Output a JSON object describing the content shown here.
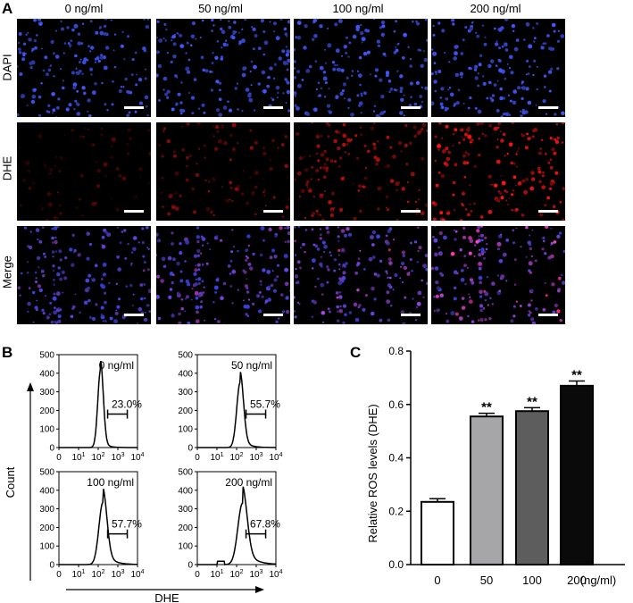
{
  "panel_a": {
    "letter": "A",
    "columns": [
      "0 ng/ml",
      "50 ng/ml",
      "100 ng/ml",
      "200 ng/ml"
    ],
    "rows": [
      "DAPI",
      "DHE",
      "Merge"
    ]
  },
  "panel_b": {
    "letter": "B",
    "y_axis_label": "Count",
    "x_axis_label": "DHE",
    "y_ticks": [
      "0",
      "100",
      "200",
      "300",
      "400",
      "500"
    ],
    "x_ticks": [
      "0",
      "10",
      "1",
      "10",
      "2",
      "10",
      "3",
      "10",
      "4"
    ],
    "x_tick_pairs": [
      {
        "base": "0",
        "exp": ""
      },
      {
        "base": "10",
        "exp": "1"
      },
      {
        "base": "10",
        "exp": "2"
      },
      {
        "base": "10",
        "exp": "3"
      },
      {
        "base": "10",
        "exp": "4"
      }
    ],
    "histograms": [
      {
        "label": "0 ng/ml",
        "percent": "23.0%",
        "peak": 420
      },
      {
        "label": "50 ng/ml",
        "percent": "55.7%",
        "peak": 350
      },
      {
        "label": "100 ng/ml",
        "percent": "57.7%",
        "peak": 335
      },
      {
        "label": "200 ng/ml",
        "percent": "67.8%",
        "peak": 330
      }
    ]
  },
  "chart_data": {
    "type": "bar",
    "letter": "C",
    "categories": [
      "0",
      "50",
      "100",
      "200"
    ],
    "x_unit": "(ng/ml)",
    "values": [
      0.235,
      0.555,
      0.575,
      0.67
    ],
    "errors": [
      0.012,
      0.012,
      0.013,
      0.018
    ],
    "significance": [
      "",
      "**",
      "**",
      "**"
    ],
    "bar_colors": [
      "#ffffff",
      "#a6a6a8",
      "#5d5d5d",
      "#0a0a0a"
    ],
    "ylabel": "Relative ROS levels (DHE)",
    "ylim": [
      0,
      0.8
    ],
    "y_ticks": [
      "0.0",
      "0.2",
      "0.4",
      "0.6",
      "0.8"
    ],
    "grid": false
  }
}
